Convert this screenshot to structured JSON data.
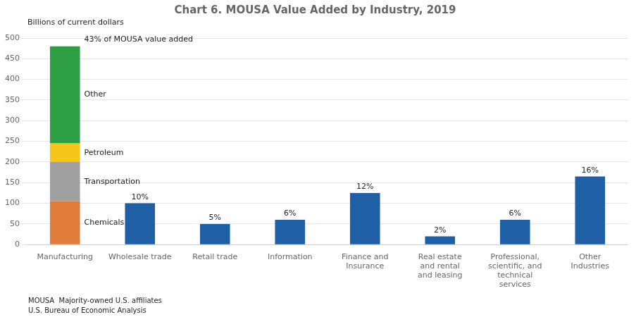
{
  "chart_data": {
    "type": "bar",
    "title": "Chart 6. MOUSA Value Added by Industry, 2019",
    "ylabel": "Billions of current dollars",
    "categories": [
      "Manufacturing",
      "Wholesale trade",
      "Retail trade",
      "Information",
      "Finance and\nInsurance",
      "Real estate\nand rental\nand leasing",
      "Professional,\nscientific, and\ntechnical\nservices",
      "Other\nIndustries"
    ],
    "stacked": true,
    "series": [
      {
        "name": "Chemicals",
        "color": "#e07b39",
        "values": [
          105,
          null,
          null,
          null,
          null,
          null,
          null,
          null
        ]
      },
      {
        "name": "Transportation",
        "color": "#a0a0a0",
        "values": [
          95,
          null,
          null,
          null,
          null,
          null,
          null,
          null
        ]
      },
      {
        "name": "Petroleum",
        "color": "#f5c518",
        "values": [
          45,
          null,
          null,
          null,
          null,
          null,
          null,
          null
        ]
      },
      {
        "name": "Other",
        "color": "#2e9e44",
        "values": [
          235,
          null,
          null,
          null,
          null,
          null,
          null,
          null
        ]
      },
      {
        "color": "#1f5fa6",
        "values": [
          null,
          100,
          50,
          60,
          125,
          20,
          60,
          165
        ],
        "pct_labels": [
          null,
          "10%",
          "5%",
          "6%",
          "12%",
          "2%",
          "6%",
          "16%"
        ]
      }
    ],
    "annotations": [
      {
        "text": "43% of MOUSA value added",
        "category": "Manufacturing"
      }
    ],
    "footnotes": [
      "MOUSA  Majority-owned U.S. affiliates",
      "U.S. Bureau of Economic Analysis"
    ],
    "ylim": [
      0,
      500
    ],
    "yticks": [
      0,
      50,
      100,
      150,
      200,
      250,
      300,
      350,
      400,
      450,
      500
    ],
    "grid": true
  }
}
